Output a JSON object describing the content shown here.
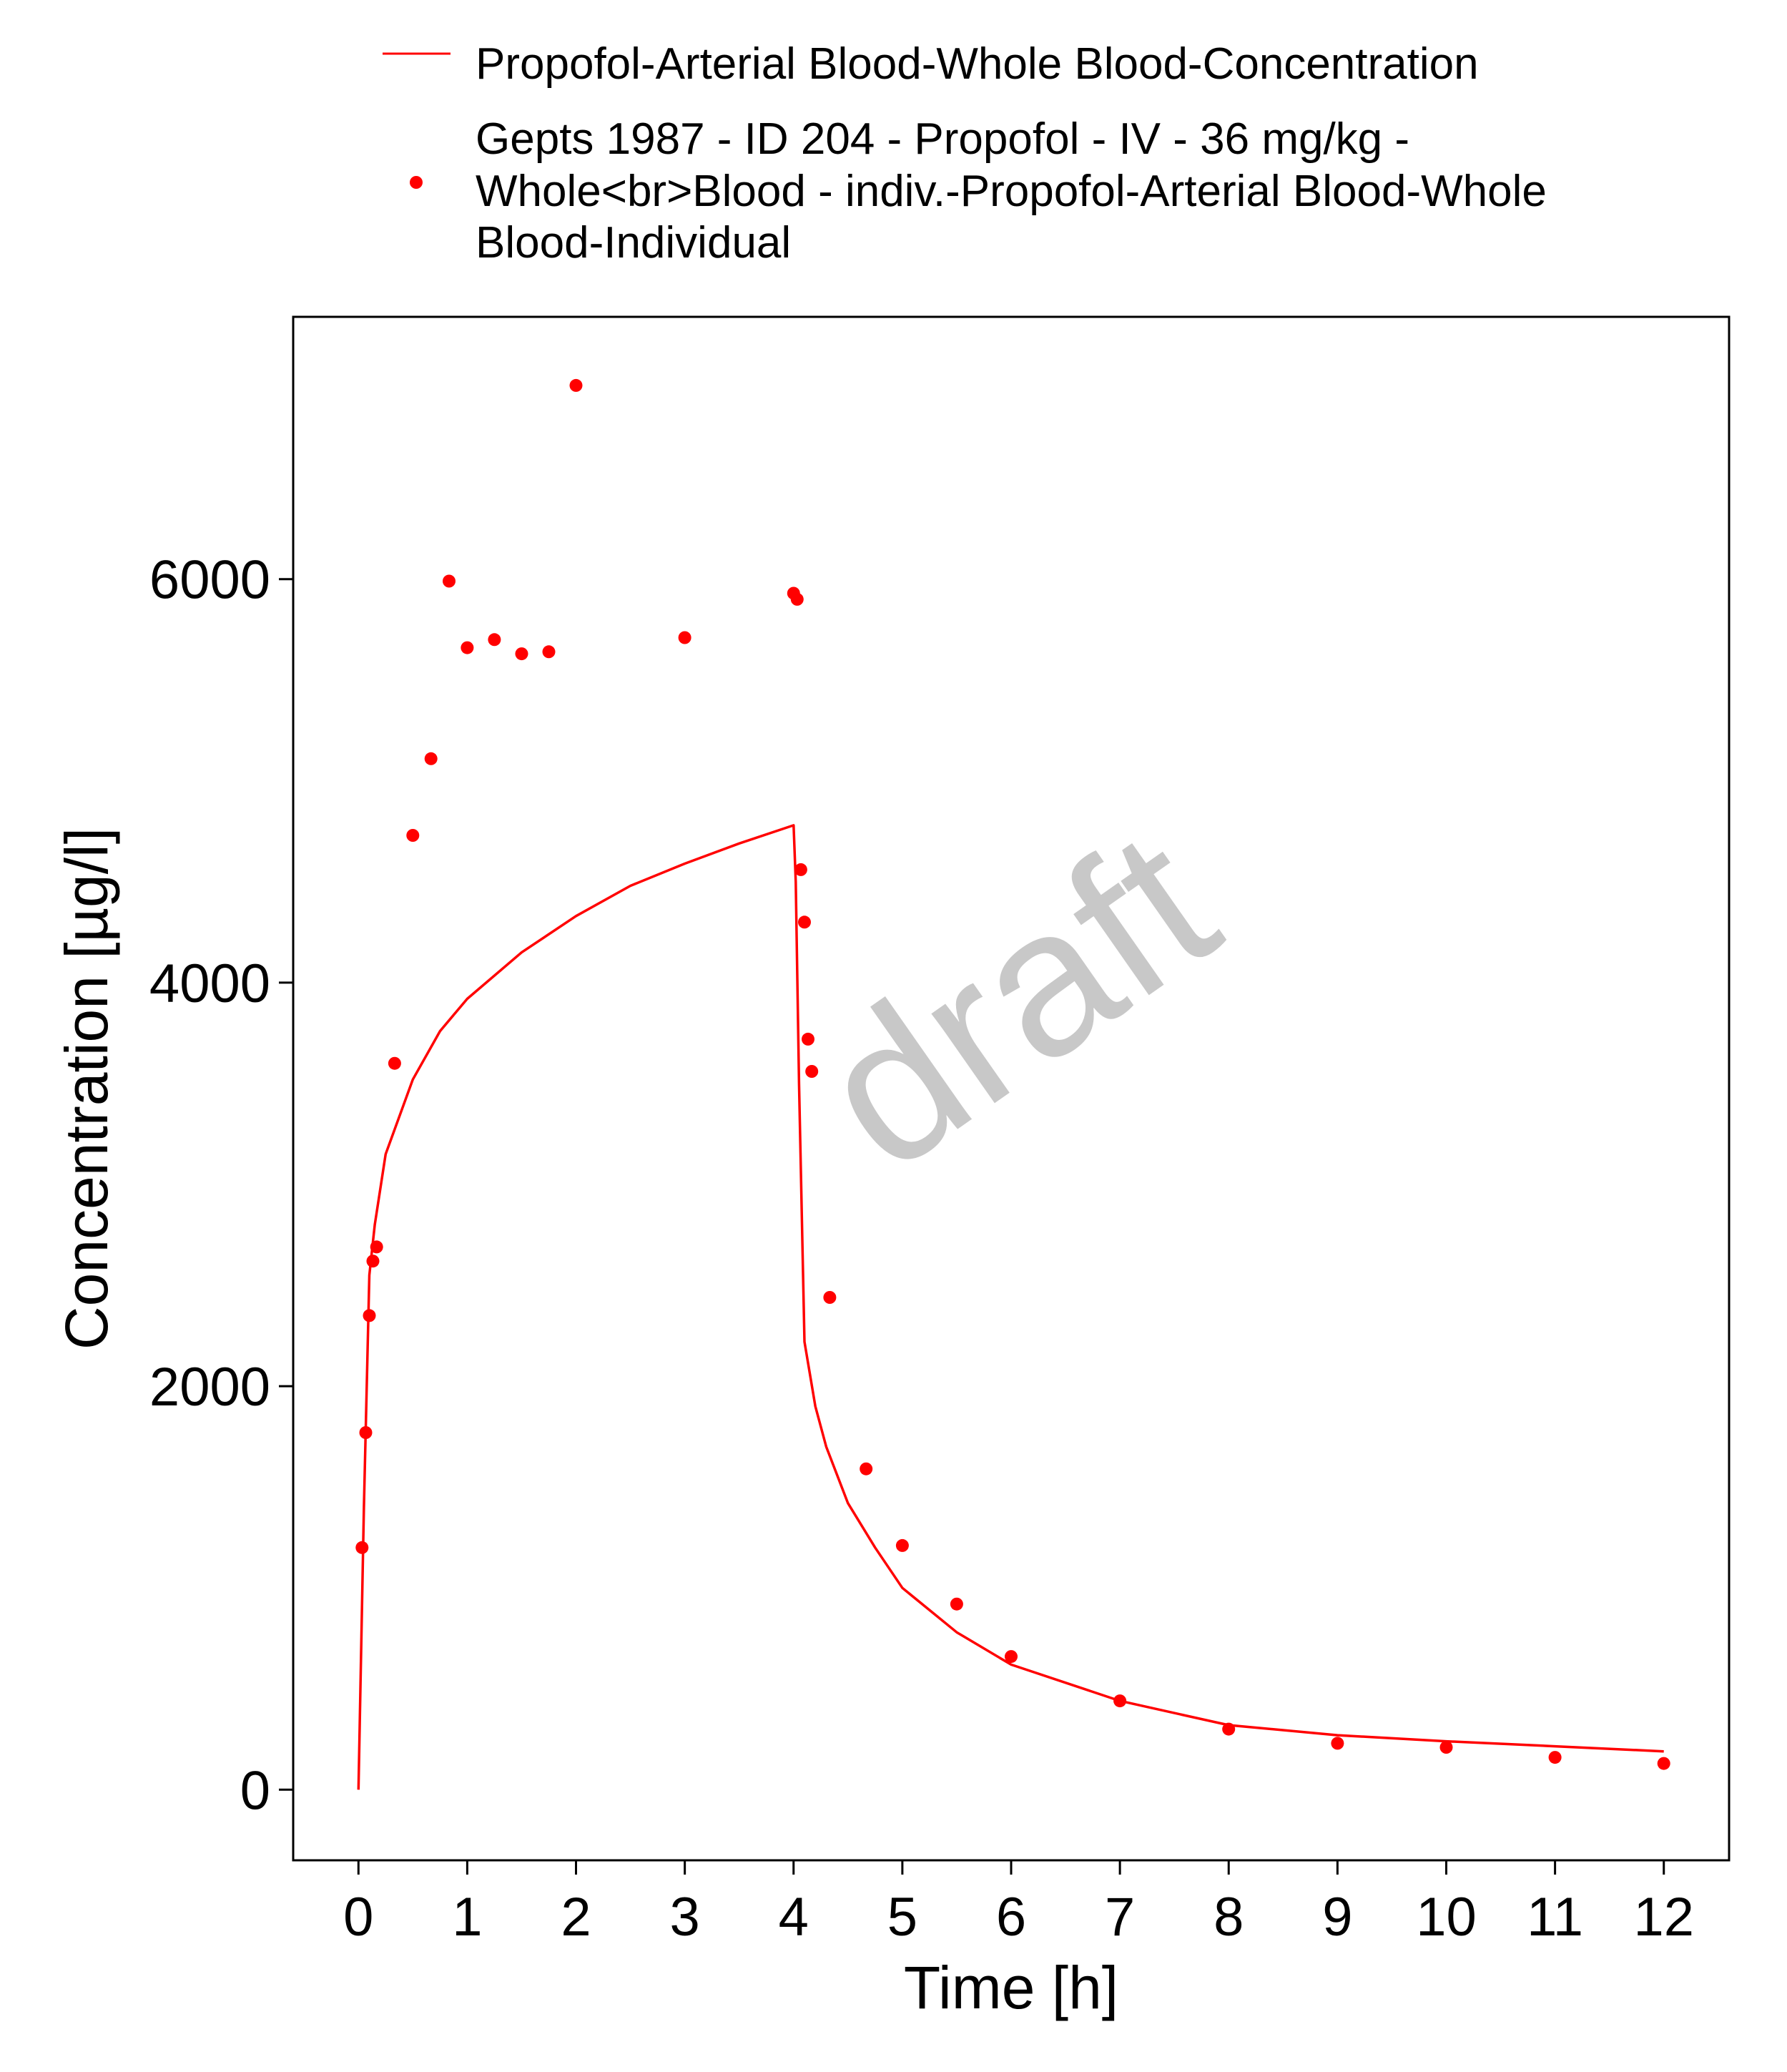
{
  "chart_data": {
    "type": "line",
    "title": "",
    "xlabel": "Time [h]",
    "ylabel": "Concentration [µg/l]",
    "xlim": [
      -0.6,
      12.6
    ],
    "ylim": [
      -350,
      7300
    ],
    "xticks": [
      "0",
      "1",
      "2",
      "3",
      "4",
      "5",
      "6",
      "7",
      "8",
      "9",
      "10",
      "11",
      "12"
    ],
    "yticks": [
      "0",
      "2000",
      "4000",
      "6000"
    ],
    "grid": false,
    "legend_position": "top",
    "watermark": "draft",
    "colors": {
      "series": "#ff0000",
      "watermark": "#c8c8c8",
      "axis": "#000000"
    },
    "series": [
      {
        "name": "Propofol-Arterial Blood-Whole Blood-Concentration",
        "kind": "line",
        "x": [
          0,
          0.05,
          0.1,
          0.15,
          0.25,
          0.5,
          0.75,
          1,
          1.5,
          2,
          2.5,
          3,
          3.5,
          4,
          4.02,
          4.05,
          4.1,
          4.2,
          4.3,
          4.5,
          4.75,
          5,
          5.5,
          6,
          7,
          8,
          9,
          10,
          11,
          12
        ],
        "y": [
          0,
          1400,
          2550,
          2800,
          3150,
          3520,
          3760,
          3920,
          4150,
          4330,
          4480,
          4590,
          4690,
          4780,
          4500,
          3500,
          2220,
          1900,
          1700,
          1420,
          1200,
          1000,
          780,
          620,
          440,
          320,
          270,
          240,
          215,
          190
        ]
      },
      {
        "name": "Gepts 1987 - ID 204 - Propofol - IV - 36 mg/kg - Whole<br>Blood - indiv.-Propofol-Arterial Blood-Whole Blood-Individual",
        "kind": "scatter",
        "x": [
          0.033,
          0.067,
          0.1,
          0.133,
          0.167,
          0.333,
          0.5,
          0.667,
          0.833,
          1,
          1.25,
          1.5,
          1.75,
          2,
          3,
          4,
          4.033,
          4.067,
          4.1,
          4.133,
          4.167,
          4.333,
          4.667,
          5,
          5.5,
          6,
          7,
          8,
          9,
          10,
          11,
          12
        ],
        "y": [
          1200,
          1770,
          2350,
          2620,
          2690,
          3600,
          4730,
          5110,
          5990,
          5660,
          5700,
          5630,
          5640,
          6960,
          5710,
          5930,
          5900,
          4560,
          4300,
          3720,
          3560,
          2440,
          1590,
          1210,
          920,
          660,
          440,
          300,
          230,
          210,
          160,
          130
        ]
      }
    ],
    "legend_labels": {
      "line": [
        "Propofol-Arterial Blood-Whole Blood-Concentration"
      ],
      "points": [
        "Gepts 1987 - ID 204 - Propofol - IV - 36 mg/kg -",
        "Whole<br>Blood - indiv.-Propofol-Arterial Blood-Whole",
        "Blood-Individual"
      ]
    }
  }
}
